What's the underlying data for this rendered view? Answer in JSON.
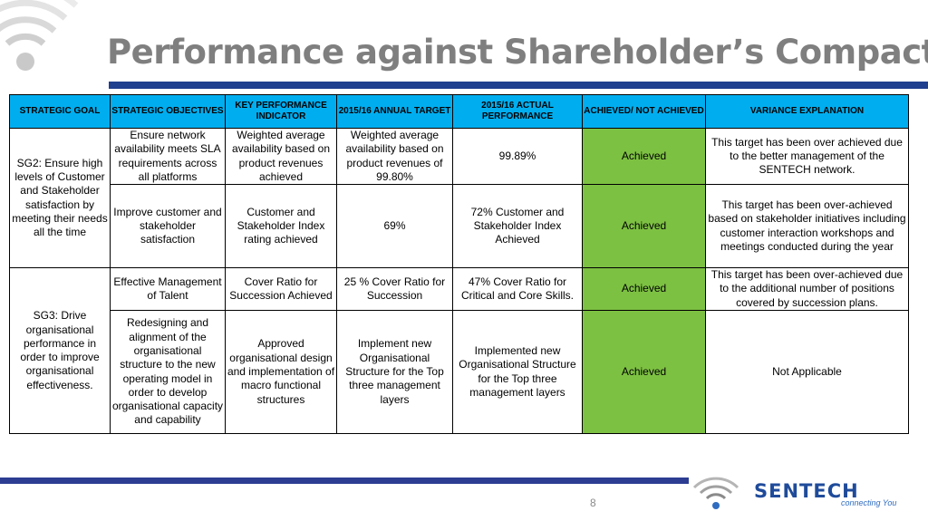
{
  "slide": {
    "title": "Performance against Shareholder’s Compact",
    "page_number": "8"
  },
  "logo": {
    "name": "SENTECH",
    "tagline": "connecting You"
  },
  "table": {
    "headers": {
      "strategic_goal": "STRATEGIC GOAL",
      "strategic_objectives": "STRATEGIC OBJECTIVES",
      "kpi": "KEY PERFORMANCE INDICATOR",
      "annual_target": "2015/16 ANNUAL TARGET",
      "actual_performance": "2015/16 ACTUAL PERFORMANCE",
      "achieved": "ACHIEVED/ NOT ACHIEVED",
      "variance": "VARIANCE EXPLANATION"
    },
    "goals": {
      "sg2": "SG2: Ensure high levels of Customer and Stakeholder satisfaction by meeting their needs all the time",
      "sg3": "SG3: Drive organisational performance in order to improve organisational effectiveness."
    },
    "rows": [
      {
        "objective": "Ensure network availability meets SLA requirements across all platforms",
        "kpi": "Weighted average availability based on product revenues achieved",
        "target": "Weighted average availability based on product revenues of 99.80%",
        "actual": "99.89%",
        "status": "Achieved",
        "variance": "This target has been over achieved due to the better management of the SENTECH network."
      },
      {
        "objective": "Improve customer and stakeholder satisfaction",
        "kpi": "Customer and Stakeholder Index rating achieved",
        "target": "69%",
        "actual": "72% Customer and Stakeholder Index Achieved",
        "status": "Achieved",
        "variance": "This target has been over-achieved based on stakeholder initiatives including customer interaction workshops and meetings conducted during the year"
      },
      {
        "objective": "Effective Management of Talent",
        "kpi": "Cover Ratio for Succession Achieved",
        "target": "25 % Cover Ratio for Succession",
        "actual": "47% Cover Ratio for Critical and Core Skills.",
        "status": "Achieved",
        "variance": "This target has been over-achieved due to the additional number of positions covered by succession plans."
      },
      {
        "objective": "Redesigning and alignment of the organisational structure to the new operating model in order to develop organisational capacity and capability",
        "kpi": "Approved organisational design and implementation of macro functional structures",
        "target": "Implement new Organisational Structure for the Top three management layers",
        "actual": "Implemented new Organisational Structure for the Top three management layers",
        "status": "Achieved",
        "variance": "Not Applicable"
      }
    ]
  },
  "colors": {
    "header_fill": "#00aeef",
    "achieved_fill": "#7dc142",
    "title_color": "#7f7f7f",
    "bar_color": "#1f3f8f"
  }
}
